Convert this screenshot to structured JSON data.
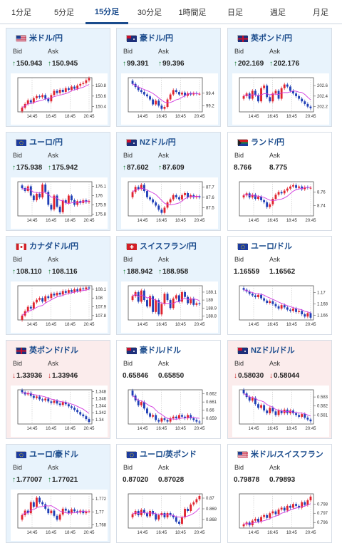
{
  "tabs": [
    {
      "label": "1分足",
      "active": false
    },
    {
      "label": "5分足",
      "active": false
    },
    {
      "label": "15分足",
      "active": true
    },
    {
      "label": "30分足",
      "active": false
    },
    {
      "label": "1時間足",
      "active": false
    },
    {
      "label": "日足",
      "active": false
    },
    {
      "label": "週足",
      "active": false
    },
    {
      "label": "月足",
      "active": false
    }
  ],
  "labels": {
    "bid": "Bid",
    "ask": "Ask"
  },
  "colors": {
    "up": "#1a7f37",
    "down": "#c41e1e",
    "candle_up": "#e0232e",
    "candle_down": "#1f3fb6",
    "ma": "#d23adf",
    "ma2": "#2a8fe0",
    "card_up": "#e8f3fc",
    "card_down": "#fbecec"
  },
  "time_ticks": [
    "14:45",
    "16:45",
    "18:45",
    "20:45"
  ],
  "cards": [
    {
      "pair": "米ドル/円",
      "flag": "US",
      "dir": "up",
      "bid": "150.943",
      "ask": "150.945",
      "y_ticks": [
        "150.8",
        "150.6",
        "150.4"
      ],
      "chart_data": {
        "type": "candlestick",
        "ylim": [
          150.3,
          150.95
        ],
        "close": [
          150.38,
          150.45,
          150.52,
          150.48,
          150.56,
          150.6,
          150.58,
          150.62,
          150.55,
          150.5,
          150.62,
          150.7,
          150.66,
          150.72,
          150.68,
          150.75,
          150.72,
          150.78,
          150.74,
          150.8,
          150.83,
          150.85,
          150.9,
          150.94
        ]
      }
    },
    {
      "pair": "豪ドル/円",
      "flag": "AU",
      "dir": "up",
      "bid": "99.391",
      "ask": "99.396",
      "y_ticks": [
        "99.4",
        "99.2"
      ],
      "chart_data": {
        "type": "candlestick",
        "ylim": [
          99.1,
          99.65
        ],
        "close": [
          99.55,
          99.5,
          99.45,
          99.42,
          99.38,
          99.35,
          99.3,
          99.22,
          99.28,
          99.2,
          99.15,
          99.18,
          99.3,
          99.38,
          99.45,
          99.42,
          99.38,
          99.41,
          99.36,
          99.4,
          99.38,
          99.4,
          99.39,
          99.39
        ]
      }
    },
    {
      "pair": "英ポンド/円",
      "flag": "GB",
      "dir": "up",
      "bid": "202.169",
      "ask": "202.176",
      "y_ticks": [
        "202.6",
        "202.4",
        "202.2"
      ],
      "chart_data": {
        "type": "candlestick",
        "ylim": [
          202.1,
          202.75
        ],
        "close": [
          202.4,
          202.45,
          202.35,
          202.5,
          202.42,
          202.3,
          202.55,
          202.6,
          202.38,
          202.3,
          202.45,
          202.5,
          202.35,
          202.55,
          202.62,
          202.58,
          202.5,
          202.45,
          202.4,
          202.35,
          202.3,
          202.25,
          202.2,
          202.17
        ]
      }
    },
    {
      "pair": "ユーロ/円",
      "flag": "EU",
      "dir": "up",
      "bid": "175.938",
      "ask": "175.942",
      "y_ticks": [
        "176.1",
        "176",
        "175.9",
        "175.8"
      ],
      "chart_data": {
        "type": "candlestick",
        "ylim": [
          175.78,
          176.15
        ],
        "close": [
          176.08,
          176.05,
          176.1,
          176.0,
          175.95,
          176.02,
          175.98,
          176.12,
          176.04,
          175.9,
          175.85,
          176.0,
          175.88,
          175.82,
          175.95,
          175.92,
          176.0,
          175.95,
          175.9,
          175.94,
          175.92,
          175.95,
          175.93,
          175.94
        ]
      }
    },
    {
      "pair": "NZドル/円",
      "flag": "NZ",
      "dir": "up",
      "bid": "87.602",
      "ask": "87.609",
      "y_ticks": [
        "87.7",
        "87.6",
        "87.5"
      ],
      "chart_data": {
        "type": "candlestick",
        "ylim": [
          87.42,
          87.75
        ],
        "close": [
          87.65,
          87.7,
          87.68,
          87.72,
          87.66,
          87.6,
          87.58,
          87.55,
          87.52,
          87.48,
          87.45,
          87.5,
          87.55,
          87.58,
          87.62,
          87.6,
          87.58,
          87.62,
          87.64,
          87.6,
          87.62,
          87.6,
          87.61,
          87.6
        ]
      }
    },
    {
      "pair": "ランド/円",
      "flag": "ZA",
      "dir": "flat",
      "bid": "8.766",
      "ask": "8.775",
      "y_ticks": [
        "8.76",
        "8.74"
      ],
      "chart_data": {
        "type": "candlestick",
        "ylim": [
          8.725,
          8.775
        ],
        "close": [
          8.755,
          8.758,
          8.752,
          8.756,
          8.75,
          8.753,
          8.748,
          8.745,
          8.738,
          8.742,
          8.75,
          8.756,
          8.76,
          8.758,
          8.762,
          8.765,
          8.768,
          8.77,
          8.766,
          8.768,
          8.764,
          8.767,
          8.766,
          8.766
        ]
      }
    },
    {
      "pair": "カナダドル/円",
      "flag": "CA",
      "dir": "up",
      "bid": "108.110",
      "ask": "108.116",
      "y_ticks": [
        "108.1",
        "108",
        "107.9",
        "107.8"
      ],
      "chart_data": {
        "type": "candlestick",
        "ylim": [
          107.75,
          108.14
        ],
        "close": [
          107.8,
          107.85,
          107.9,
          107.88,
          107.95,
          107.98,
          108.0,
          107.96,
          108.02,
          108.0,
          108.05,
          108.03,
          108.06,
          108.04,
          108.08,
          108.06,
          108.09,
          108.07,
          108.1,
          108.08,
          108.11,
          108.1,
          108.12,
          108.11
        ]
      }
    },
    {
      "pair": "スイスフラン/円",
      "flag": "CH",
      "dir": "up",
      "bid": "188.942",
      "ask": "188.958",
      "y_ticks": [
        "189.1",
        "189",
        "188.9",
        "188.8"
      ],
      "chart_data": {
        "type": "candlestick",
        "ylim": [
          188.75,
          189.18
        ],
        "close": [
          189.05,
          189.1,
          188.98,
          189.12,
          189.0,
          188.92,
          189.05,
          188.85,
          189.0,
          188.82,
          188.95,
          189.08,
          189.0,
          188.9,
          189.02,
          189.06,
          188.98,
          189.1,
          189.04,
          188.96,
          189.02,
          188.94,
          188.96,
          188.95
        ]
      }
    },
    {
      "pair": "ユーロ/ドル",
      "flag": "EU",
      "dir": "flat",
      "bid": "1.16559",
      "ask": "1.16562",
      "y_ticks": [
        "1.17",
        "1.168",
        "1.166"
      ],
      "chart_data": {
        "type": "candlestick",
        "ylim": [
          1.1652,
          1.1712
        ],
        "close": [
          1.1705,
          1.1702,
          1.1698,
          1.1695,
          1.1692,
          1.1696,
          1.169,
          1.1686,
          1.1682,
          1.1685,
          1.168,
          1.1676,
          1.1672,
          1.1678,
          1.1674,
          1.167,
          1.1668,
          1.1672,
          1.1666,
          1.1668,
          1.1662,
          1.1658,
          1.1664,
          1.1656
        ]
      }
    },
    {
      "pair": "英ポンド/ドル",
      "flag": "GB",
      "dir": "down",
      "bid": "1.33936",
      "ask": "1.33946",
      "y_ticks": [
        "1.348",
        "1.346",
        "1.344",
        "1.342",
        "1.34"
      ],
      "chart_data": {
        "type": "candlestick",
        "ylim": [
          1.3388,
          1.3485
        ],
        "close": [
          1.3478,
          1.3472,
          1.3476,
          1.3468,
          1.3462,
          1.3466,
          1.3458,
          1.3455,
          1.346,
          1.3452,
          1.3448,
          1.3454,
          1.3446,
          1.3442,
          1.345,
          1.3444,
          1.3438,
          1.3434,
          1.3428,
          1.3422,
          1.3415,
          1.341,
          1.3402,
          1.3394
        ]
      }
    },
    {
      "pair": "豪ドル/ドル",
      "flag": "AU",
      "dir": "flat",
      "bid": "0.65846",
      "ask": "0.65850",
      "y_ticks": [
        "0.662",
        "0.661",
        "0.66",
        "0.659"
      ],
      "chart_data": {
        "type": "candlestick",
        "ylim": [
          0.6583,
          0.6625
        ],
        "close": [
          0.6618,
          0.6612,
          0.6606,
          0.661,
          0.6602,
          0.6596,
          0.6592,
          0.6594,
          0.6588,
          0.6586,
          0.659,
          0.6588,
          0.6586,
          0.659,
          0.6592,
          0.659,
          0.6594,
          0.6592,
          0.659,
          0.6594,
          0.659,
          0.6588,
          0.6586,
          0.6585
        ]
      }
    },
    {
      "pair": "NZドル/ドル",
      "flag": "NZ",
      "dir": "down",
      "bid": "0.58030",
      "ask": "0.58044",
      "y_ticks": [
        "0.583",
        "0.582",
        "0.581"
      ],
      "chart_data": {
        "type": "candlestick",
        "ylim": [
          0.58,
          0.5838
        ],
        "close": [
          0.5834,
          0.583,
          0.5826,
          0.5829,
          0.5822,
          0.5818,
          0.5821,
          0.5815,
          0.5812,
          0.5818,
          0.5814,
          0.581,
          0.5815,
          0.5812,
          0.5816,
          0.5812,
          0.5815,
          0.5812,
          0.581,
          0.5808,
          0.5811,
          0.5807,
          0.5805,
          0.5803
        ]
      }
    },
    {
      "pair": "ユーロ/豪ドル",
      "flag": "EU",
      "dir": "up",
      "bid": "1.77007",
      "ask": "1.77021",
      "y_ticks": [
        "1.772",
        "1.77",
        "1.768"
      ],
      "chart_data": {
        "type": "candlestick",
        "ylim": [
          1.7675,
          1.7728
        ],
        "close": [
          1.7695,
          1.7702,
          1.7698,
          1.7715,
          1.7708,
          1.7722,
          1.7715,
          1.7712,
          1.7705,
          1.7698,
          1.7702,
          1.7694,
          1.7688,
          1.7696,
          1.7705,
          1.7702,
          1.7698,
          1.7704,
          1.7701,
          1.7699,
          1.7702,
          1.7698,
          1.7701,
          1.7701
        ]
      }
    },
    {
      "pair": "ユーロ/英ポンド",
      "flag": "EU",
      "dir": "flat",
      "bid": "0.87020",
      "ask": "0.87028",
      "y_ticks": [
        "0.87",
        "0.869",
        "0.868"
      ],
      "chart_data": {
        "type": "candlestick",
        "ylim": [
          0.8672,
          0.8704
        ],
        "close": [
          0.8685,
          0.8688,
          0.8684,
          0.8689,
          0.8686,
          0.8683,
          0.8688,
          0.8685,
          0.868,
          0.8684,
          0.8686,
          0.8682,
          0.8686,
          0.8684,
          0.8682,
          0.8678,
          0.8676,
          0.8682,
          0.869,
          0.8688,
          0.8694,
          0.8696,
          0.8699,
          0.8702
        ]
      }
    },
    {
      "pair": "米ドル/スイスフラン",
      "flag": "US",
      "dir": "flat",
      "bid": "0.79878",
      "ask": "0.79893",
      "y_ticks": [
        "0.798",
        "0.797",
        "0.796"
      ],
      "chart_data": {
        "type": "candlestick",
        "ylim": [
          0.7954,
          0.7991
        ],
        "close": [
          0.7958,
          0.796,
          0.7957,
          0.7962,
          0.7964,
          0.7961,
          0.7966,
          0.7968,
          0.7965,
          0.797,
          0.7972,
          0.7969,
          0.7974,
          0.7976,
          0.7973,
          0.7978,
          0.7976,
          0.798,
          0.7978,
          0.7976,
          0.7982,
          0.7979,
          0.7984,
          0.7988
        ]
      }
    }
  ]
}
